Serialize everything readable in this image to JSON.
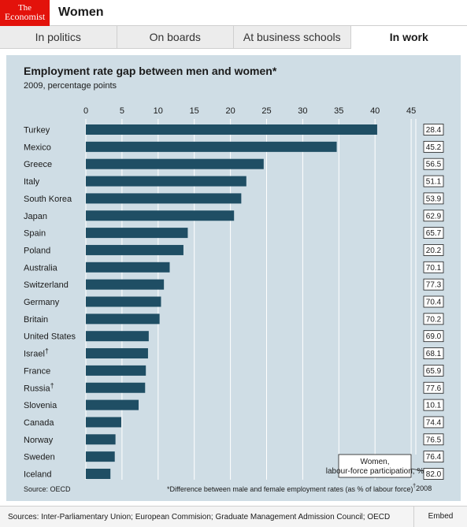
{
  "header": {
    "logo_line1": "The",
    "logo_line2": "Economist",
    "section": "Women"
  },
  "tabs": [
    {
      "label": "In politics",
      "active": false
    },
    {
      "label": "On boards",
      "active": false
    },
    {
      "label": "At business schools",
      "active": false
    },
    {
      "label": "In work",
      "active": true
    }
  ],
  "colors": {
    "bar": "#1f4e64",
    "panel": "#cfdde5",
    "brand_red": "#e3120b"
  },
  "chart_data": {
    "type": "bar",
    "orientation": "horizontal",
    "title": "Employment rate gap between men and women*",
    "subtitle": "2009, percentage points",
    "xlim": [
      0,
      45
    ],
    "xticks": [
      0,
      5,
      10,
      15,
      20,
      25,
      30,
      35,
      40,
      45
    ],
    "grid": true,
    "categories": [
      "Turkey",
      "Mexico",
      "Greece",
      "Italy",
      "South Korea",
      "Japan",
      "Spain",
      "Poland",
      "Australia",
      "Switzerland",
      "Germany",
      "Britain",
      "United States",
      "Israel",
      "France",
      "Russia",
      "Slovenia",
      "Canada",
      "Norway",
      "Sweden",
      "Iceland"
    ],
    "dagger": [
      false,
      false,
      false,
      false,
      false,
      false,
      false,
      false,
      false,
      false,
      false,
      false,
      false,
      true,
      false,
      true,
      false,
      false,
      false,
      false,
      false
    ],
    "values": [
      40.3,
      34.7,
      24.6,
      22.2,
      21.5,
      20.5,
      14.1,
      13.5,
      11.6,
      10.8,
      10.4,
      10.2,
      8.7,
      8.6,
      8.3,
      8.2,
      7.3,
      4.9,
      4.1,
      4.0,
      3.4
    ],
    "labour_force_participation": [
      "28.4",
      "45.2",
      "56.5",
      "51.1",
      "53.9",
      "62.9",
      "65.7",
      "20.2",
      "70.1",
      "77.3",
      "70.4",
      "70.2",
      "69.0",
      "68.1",
      "65.9",
      "77.6",
      "10.1",
      "74.4",
      "76.5",
      "76.4",
      "82.0"
    ],
    "participation_legend": "Women, labour-force participation, %",
    "source": "Source: OECD",
    "footnote": "*Difference between male and female employment rates (as % of labour force)",
    "footnote_dagger": "2008"
  },
  "footer": {
    "sources": "Sources: Inter-Parliamentary Union; European Commision; Graduate Management Admission Council; OECD",
    "embed_label": "Embed"
  }
}
